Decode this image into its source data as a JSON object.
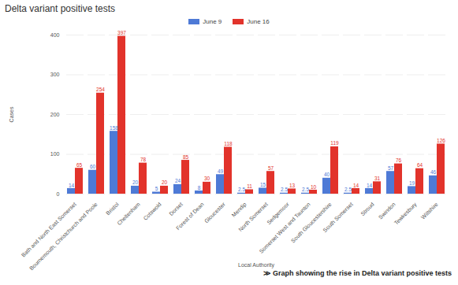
{
  "chart_data": {
    "type": "bar",
    "title": "Delta variant positive tests",
    "caption": "≫ Graph showing the rise in Delta variant positive tests",
    "x_label": "Local Authority",
    "y_label": "Cases",
    "categories": [
      "Bath and North East Somerset",
      "Bournemouth, Christchurch and Poole",
      "Bristol",
      "Cheltenham",
      "Cotswold",
      "Dorset",
      "Forest of Dean",
      "Gloucester",
      "Mendip",
      "North Somerset",
      "Sedgemoor",
      "Somerset West and Taunton",
      "South Gloucestershire",
      "South Somerset",
      "Stroud",
      "Swindon",
      "Tewkesbury",
      "Wiltshire"
    ],
    "series": [
      {
        "name": "June 9",
        "color": "#4e7ad6",
        "values": [
          14,
          60,
          158,
          20,
          5,
          24,
          8,
          49,
          2.5,
          15,
          2.5,
          2.5,
          40,
          2.5,
          14,
          57,
          19,
          46
        ]
      },
      {
        "name": "June 16",
        "color": "#e2332b",
        "values": [
          65,
          254,
          397,
          78,
          20,
          85,
          30,
          118,
          11,
          57,
          13,
          10,
          119,
          14,
          31,
          76,
          64,
          126
        ]
      }
    ],
    "ylim": [
      0,
      400
    ],
    "yticks": [
      0,
      100,
      200,
      300,
      400
    ],
    "grid": true,
    "data_labels": true,
    "legend": "top"
  }
}
